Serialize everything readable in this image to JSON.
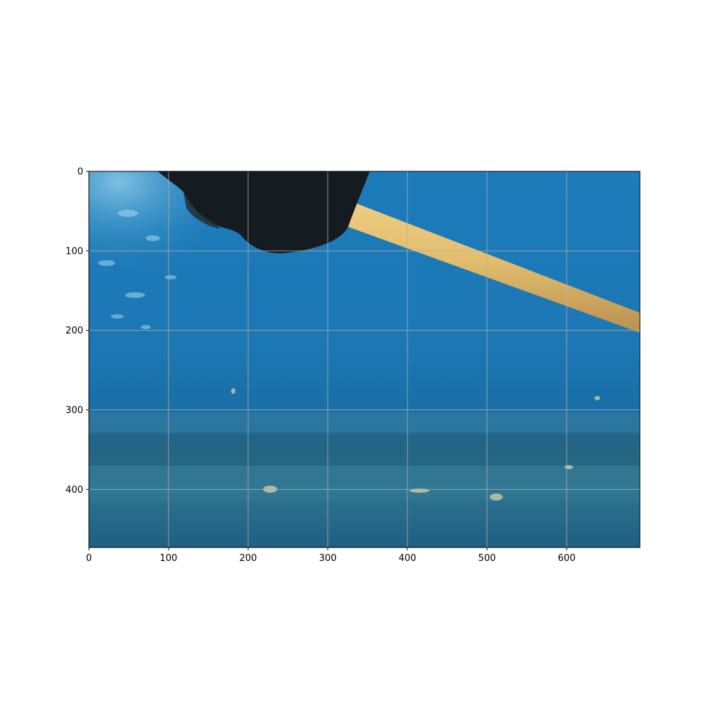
{
  "image": {
    "subject": "underwater-photo",
    "colors": {
      "water_light": "#4a9fd0",
      "water_mid": "#1d7ab8",
      "water_deep": "#1a6fa8",
      "sediment": "#2b6f8f",
      "stick": "#e2bd6e",
      "dark_mass": "#141c22"
    }
  },
  "axes": {
    "x_ticks": [
      "0",
      "100",
      "200",
      "300",
      "400",
      "500",
      "600"
    ],
    "y_ticks": [
      "0",
      "100",
      "200",
      "300",
      "400"
    ],
    "grid": true,
    "x_range": [
      0,
      692
    ],
    "y_range": [
      0,
      473
    ]
  }
}
